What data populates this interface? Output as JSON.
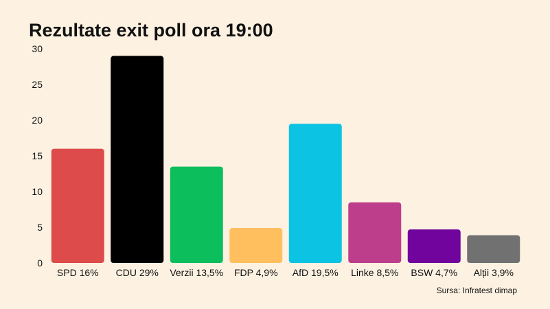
{
  "chart_data": {
    "type": "bar",
    "title": "Rezultate exit poll ora 19:00",
    "source": "Sursa: Infratest dimap",
    "ylim": [
      0,
      30
    ],
    "yticks": [
      0,
      5,
      10,
      15,
      20,
      25,
      30
    ],
    "categories": [
      "SPD 16%",
      "CDU 29%",
      "Verzii 13,5%",
      "FDP 4,9%",
      "AfD 19,5%",
      "Linke 8,5%",
      "BSW 4,7%",
      "Alții 3,9%"
    ],
    "values": [
      16,
      29,
      13.5,
      4.9,
      19.5,
      8.5,
      4.7,
      3.9
    ],
    "colors": [
      "#dd4b4b",
      "#000000",
      "#0dbe5d",
      "#ffbf5e",
      "#0dc3e3",
      "#bd3e8b",
      "#70049c",
      "#717171"
    ]
  }
}
